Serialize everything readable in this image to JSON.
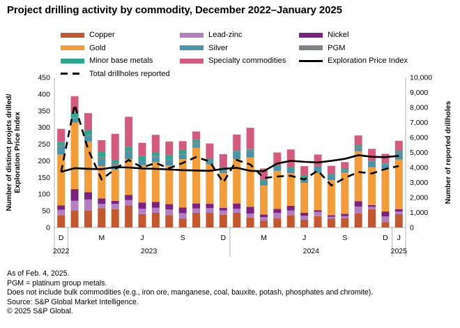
{
  "title": "Project drilling activity by commodity, December 2022–January 2025",
  "legend": {
    "columns": [
      [
        {
          "label": "Copper",
          "type": "rect",
          "color": "#c4572e"
        },
        {
          "label": "Gold",
          "type": "rect",
          "color": "#f29d39"
        },
        {
          "label": "Minor base metals",
          "type": "rect",
          "color": "#2ba88c"
        },
        {
          "label": "Total drillholes reported",
          "type": "dashed",
          "color": "#000000"
        }
      ],
      [
        {
          "label": "Lead-zinc",
          "type": "rect",
          "color": "#b47fc2"
        },
        {
          "label": "Silver",
          "type": "rect",
          "color": "#4b93a9"
        },
        {
          "label": "Specialty commodities",
          "type": "rect",
          "color": "#d45a7e"
        }
      ],
      [
        {
          "label": "Nickel",
          "type": "rect",
          "color": "#7b2282"
        },
        {
          "label": "PGM",
          "type": "rect",
          "color": "#808285"
        },
        {
          "label": "Exploration Price Index",
          "type": "line",
          "color": "#000000"
        }
      ]
    ]
  },
  "chart_data": {
    "type": "bar",
    "stacked": true,
    "categories": [
      "Dec 2022",
      "Jan 2023",
      "Feb 2023",
      "Mar 2023",
      "Apr 2023",
      "May 2023",
      "Jun 2023",
      "Jul 2023",
      "Aug 2023",
      "Sep 2023",
      "Oct 2023",
      "Nov 2023",
      "Dec 2023",
      "Jan 2024",
      "Feb 2024",
      "Mar 2024",
      "Apr 2024",
      "May 2024",
      "Jun 2024",
      "Jul 2024",
      "Aug 2024",
      "Sep 2024",
      "Oct 2024",
      "Nov 2024",
      "Dec 2024",
      "Jan 2025"
    ],
    "series": [
      {
        "name": "Copper",
        "color": "#c4572e",
        "values": [
          37,
          51,
          51,
          58,
          55,
          66,
          40,
          44,
          37,
          27,
          44,
          44,
          38,
          44,
          30,
          20,
          28,
          37,
          23,
          34,
          27,
          28,
          42,
          55,
          16,
          40
        ]
      },
      {
        "name": "Lead-zinc",
        "color": "#b47fc2",
        "values": [
          16,
          29,
          33,
          13,
          16,
          16,
          16,
          15,
          17,
          16,
          13,
          14,
          13,
          12,
          12,
          11,
          16,
          14,
          12,
          13,
          5,
          6,
          21,
          7,
          17,
          8
        ]
      },
      {
        "name": "Nickel",
        "color": "#7b2282",
        "values": [
          13,
          35,
          22,
          16,
          9,
          16,
          19,
          18,
          16,
          17,
          15,
          13,
          8,
          16,
          20,
          8,
          12,
          14,
          9,
          5,
          5,
          7,
          16,
          5,
          15,
          7
        ]
      },
      {
        "name": "Gold",
        "color": "#f29d39",
        "values": [
          153,
          200,
          152,
          97,
          94,
          107,
          112,
          119,
          116,
          145,
          167,
          118,
          104,
          133,
          148,
          87,
          114,
          98,
          90,
          112,
          105,
          124,
          150,
          114,
          127,
          149
        ]
      },
      {
        "name": "Silver",
        "color": "#4b93a9",
        "values": [
          24,
          12,
          17,
          21,
          13,
          21,
          14,
          15,
          19,
          14,
          12,
          11,
          13,
          21,
          19,
          9,
          11,
          15,
          13,
          16,
          13,
          6,
          9,
          17,
          15,
          19
        ]
      },
      {
        "name": "PGM",
        "color": "#808285",
        "values": [
          4,
          2,
          3,
          7,
          6,
          4,
          2,
          3,
          2,
          2,
          4,
          2,
          2,
          1,
          4,
          0,
          0,
          0,
          0,
          0,
          0,
          1,
          5,
          0,
          0,
          4
        ]
      },
      {
        "name": "Minor base metals",
        "color": "#2ba88c",
        "values": [
          9,
          15,
          14,
          14,
          8,
          12,
          12,
          11,
          10,
          12,
          8,
          5,
          4,
          3,
          2,
          7,
          4,
          2,
          8,
          3,
          5,
          6,
          5,
          2,
          2,
          5
        ]
      },
      {
        "name": "Specialty commodities",
        "color": "#d45a7e",
        "values": [
          40,
          50,
          51,
          36,
          80,
          90,
          39,
          53,
          41,
          26,
          25,
          45,
          38,
          49,
          64,
          35,
          40,
          54,
          29,
          36,
          25,
          18,
          28,
          36,
          29,
          28
        ]
      }
    ],
    "lines": [
      {
        "name": "Exploration Price Index",
        "axis": "left",
        "style": "solid",
        "color": "#000000",
        "values": [
          167,
          178,
          176,
          175,
          181,
          180,
          177,
          176,
          174,
          172,
          171,
          170,
          176,
          179,
          170,
          169,
          192,
          200,
          197,
          195,
          200,
          206,
          217,
          212,
          211,
          215
        ]
      },
      {
        "name": "Total drillholes reported",
        "axis": "right",
        "style": "dashed",
        "color": "#000000",
        "values": [
          3700,
          8200,
          5200,
          3200,
          3900,
          4500,
          4000,
          4300,
          3950,
          4300,
          4700,
          4400,
          3000,
          4500,
          4200,
          3300,
          3400,
          3450,
          3200,
          3800,
          2800,
          3300,
          3700,
          3600,
          3900,
          4100
        ]
      }
    ],
    "left_axis": {
      "title_line1": "Number of distinct projets drilled/",
      "title_line2": "Exploration Price Index",
      "min": 0,
      "max": 450,
      "step": 50,
      "ticks": [
        "0",
        "50",
        "100",
        "150",
        "200",
        "250",
        "300",
        "350",
        "400",
        "450"
      ]
    },
    "right_axis": {
      "title": "Number of reported drillholes",
      "min": 0,
      "max": 10000,
      "step": 1000,
      "ticks": [
        "0",
        "1,000",
        "2,000",
        "3,000",
        "4,000",
        "5,000",
        "6,000",
        "7,000",
        "8,000",
        "9,000",
        "10,000"
      ]
    },
    "x_axis": {
      "month_ticks": [
        {
          "label": "D",
          "index": 0
        },
        {
          "label": "M",
          "index": 3
        },
        {
          "label": "J",
          "index": 6
        },
        {
          "label": "S",
          "index": 9
        },
        {
          "label": "D",
          "index": 12
        },
        {
          "label": "M",
          "index": 15
        },
        {
          "label": "J",
          "index": 18
        },
        {
          "label": "S",
          "index": 21
        },
        {
          "label": "D",
          "index": 24
        },
        {
          "label": "J",
          "index": 25
        }
      ],
      "years": [
        "2022",
        "2023",
        "2024",
        "2025"
      ],
      "dividers_after_index": [
        0,
        12,
        24
      ]
    }
  },
  "notes": [
    "As of Feb. 4, 2025.",
    "PGM = platinum group metals.",
    "Does not include bulk commodities (e.g., iron ore, manganese, coal, bauxite, potash, phosphates and chromite).",
    "Source: S&P Global Market Intelligence.",
    "© 2025 S&P Global."
  ]
}
